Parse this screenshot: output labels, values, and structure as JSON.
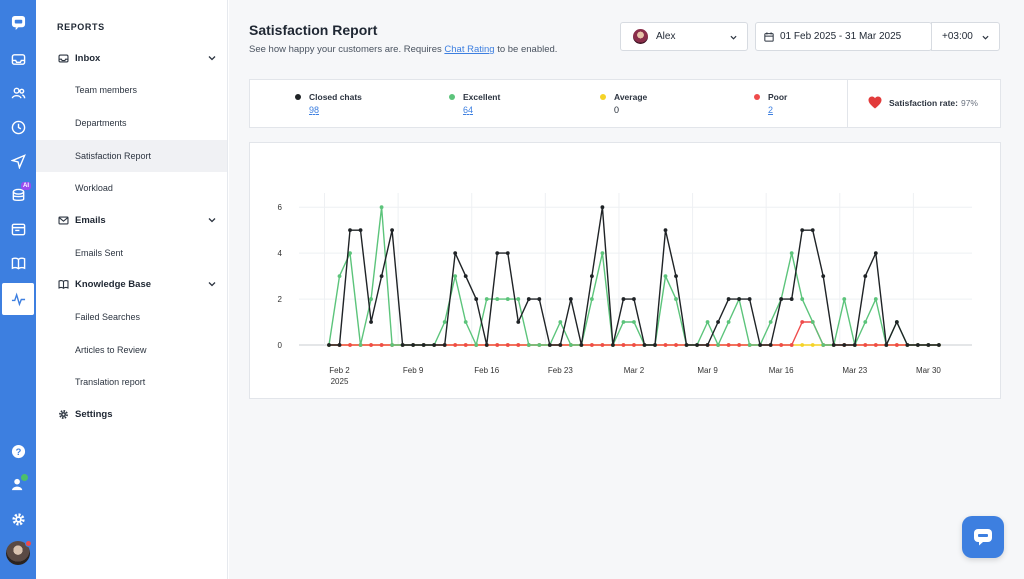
{
  "sidebar": {
    "heading": "REPORTS",
    "sections": [
      {
        "label": "Inbox",
        "icon": "inbox-icon",
        "items": [
          "Team members",
          "Departments",
          "Satisfaction Report",
          "Workload"
        ]
      },
      {
        "label": "Emails",
        "icon": "mail-icon",
        "items": [
          "Emails Sent"
        ]
      },
      {
        "label": "Knowledge Base",
        "icon": "book-icon",
        "items": [
          "Failed Searches",
          "Articles to Review",
          "Translation report"
        ]
      },
      {
        "label": "Settings",
        "icon": "gear-icon",
        "items": []
      }
    ],
    "active_item": "Satisfaction Report"
  },
  "rail": {
    "icons": [
      "chat-logo-icon",
      "inbox-icon",
      "users-icon",
      "clock-icon",
      "send-icon",
      "ai-bot-icon",
      "ticket-icon",
      "book-icon",
      "reports-icon",
      "help-icon",
      "user-status-icon",
      "gear-icon"
    ],
    "ai_badge": "AI"
  },
  "header": {
    "title": "Satisfaction Report",
    "subtitle_before": "See how happy your customers are. Requires ",
    "subtitle_link": "Chat Rating",
    "subtitle_after": " to be enabled."
  },
  "filters": {
    "agent": "Alex",
    "date_range": "01 Feb 2025 - 31 Mar 2025",
    "timezone": "+03:00"
  },
  "stats": [
    {
      "label": "Closed chats",
      "value": "98",
      "color": "#1f2326",
      "link": true
    },
    {
      "label": "Excellent",
      "value": "64",
      "color": "#5cc47b",
      "link": true
    },
    {
      "label": "Average",
      "value": "0",
      "color": "#f5d327",
      "link": false
    },
    {
      "label": "Poor",
      "value": "2",
      "color": "#ef4b4b",
      "link": true
    }
  ],
  "satisfaction": {
    "label": "Satisfaction rate:",
    "value": "97%"
  },
  "chart_data": {
    "type": "line",
    "x_start": "2025-02-01",
    "x_ticks": [
      {
        "date": "2025-02-02",
        "label": "Feb 2",
        "sublabel": "2025"
      },
      {
        "date": "2025-02-09",
        "label": "Feb 9"
      },
      {
        "date": "2025-02-16",
        "label": "Feb 16"
      },
      {
        "date": "2025-02-23",
        "label": "Feb 23"
      },
      {
        "date": "2025-03-02",
        "label": "Mar 2"
      },
      {
        "date": "2025-03-09",
        "label": "Mar 9"
      },
      {
        "date": "2025-03-16",
        "label": "Mar 16"
      },
      {
        "date": "2025-03-23",
        "label": "Mar 23"
      },
      {
        "date": "2025-03-30",
        "label": "Mar 30"
      }
    ],
    "y_ticks": [
      0,
      2,
      4,
      6
    ],
    "ylim": [
      0,
      6.4
    ],
    "grid": true,
    "series": [
      {
        "name": "Closed chats",
        "color": "#1f2326",
        "values": [
          0,
          0,
          5,
          5,
          1,
          3,
          5,
          0,
          0,
          0,
          0,
          0,
          4,
          3,
          2,
          0,
          4,
          4,
          1,
          2,
          2,
          0,
          0,
          2,
          0,
          3,
          6,
          0,
          2,
          2,
          0,
          0,
          5,
          3,
          0,
          0,
          0,
          1,
          2,
          2,
          2,
          0,
          0,
          2,
          2,
          5,
          5,
          3,
          0,
          0,
          0,
          3,
          4,
          0,
          1,
          0,
          0,
          0,
          0
        ]
      },
      {
        "name": "Excellent",
        "color": "#5cc47b",
        "values": [
          0,
          3,
          4,
          0,
          2,
          6,
          0,
          0,
          0,
          0,
          0,
          1,
          3,
          1,
          0,
          2,
          2,
          2,
          2,
          0,
          0,
          0,
          1,
          0,
          0,
          2,
          4,
          0,
          1,
          1,
          0,
          0,
          3,
          2,
          0,
          0,
          1,
          0,
          1,
          2,
          0,
          0,
          1,
          2,
          4,
          2,
          1,
          0,
          0,
          2,
          0,
          1,
          2,
          0,
          1,
          0,
          0,
          0,
          0
        ]
      },
      {
        "name": "Average",
        "color": "#f5d327",
        "values": [
          0,
          0,
          0,
          0,
          0,
          0,
          0,
          0,
          0,
          0,
          0,
          0,
          0,
          0,
          0,
          0,
          0,
          0,
          0,
          0,
          0,
          0,
          0,
          0,
          0,
          0,
          0,
          0,
          0,
          0,
          0,
          0,
          0,
          0,
          0,
          0,
          0,
          0,
          0,
          0,
          0,
          0,
          0,
          0,
          0,
          0,
          0,
          0,
          0,
          0,
          0,
          0,
          0,
          0,
          0,
          0,
          0,
          0,
          0
        ]
      },
      {
        "name": "Poor",
        "color": "#ef4b4b",
        "values": [
          0,
          0,
          0,
          0,
          0,
          0,
          0,
          0,
          0,
          0,
          0,
          0,
          0,
          0,
          0,
          0,
          0,
          0,
          0,
          0,
          0,
          0,
          0,
          0,
          0,
          0,
          0,
          0,
          0,
          0,
          0,
          0,
          0,
          0,
          0,
          0,
          0,
          0,
          0,
          0,
          0,
          0,
          0,
          0,
          0,
          1,
          1,
          0,
          0,
          0,
          0,
          0,
          0,
          0,
          0,
          0,
          0,
          0,
          0
        ]
      }
    ]
  }
}
